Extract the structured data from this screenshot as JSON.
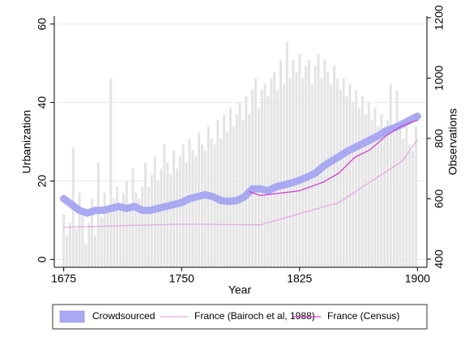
{
  "chart_data": {
    "type": "line",
    "xlabel": "Year",
    "ylabel": "Urbanization",
    "y2label": "Observations",
    "xlim": [
      1669,
      1906
    ],
    "ylim": [
      -2,
      62
    ],
    "y2lim": [
      373,
      1205
    ],
    "xticks": [
      1675,
      1750,
      1825,
      1900
    ],
    "yticks": [
      0,
      20,
      40,
      60
    ],
    "y2ticks": [
      400,
      600,
      800,
      1000,
      1200
    ],
    "grid": true,
    "legend": "bottom",
    "series": [
      {
        "type": "bar",
        "axis": "y2",
        "color": "#e4e4e4",
        "x": [
          1675,
          1677,
          1679,
          1681,
          1683,
          1685,
          1687,
          1689,
          1691,
          1693,
          1695,
          1697,
          1699,
          1701,
          1703,
          1705,
          1707,
          1709,
          1711,
          1713,
          1715,
          1717,
          1719,
          1721,
          1723,
          1725,
          1727,
          1729,
          1731,
          1733,
          1735,
          1737,
          1739,
          1741,
          1743,
          1745,
          1747,
          1749,
          1751,
          1753,
          1755,
          1757,
          1759,
          1761,
          1763,
          1765,
          1767,
          1769,
          1771,
          1773,
          1775,
          1777,
          1779,
          1781,
          1783,
          1785,
          1787,
          1789,
          1791,
          1793,
          1795,
          1797,
          1799,
          1801,
          1803,
          1805,
          1807,
          1809,
          1811,
          1813,
          1815,
          1817,
          1819,
          1821,
          1823,
          1825,
          1827,
          1829,
          1831,
          1833,
          1835,
          1837,
          1839,
          1841,
          1843,
          1845,
          1847,
          1849,
          1851,
          1853,
          1855,
          1857,
          1859,
          1861,
          1863,
          1865,
          1867,
          1869,
          1871,
          1873,
          1875,
          1877,
          1879,
          1881,
          1883,
          1885,
          1887,
          1889,
          1891,
          1893,
          1895,
          1897,
          1899
        ],
        "values": [
          550,
          480,
          520,
          770,
          500,
          620,
          560,
          450,
          520,
          600,
          480,
          720,
          540,
          620,
          560,
          1000,
          600,
          640,
          560,
          620,
          660,
          580,
          700,
          620,
          600,
          640,
          720,
          640,
          680,
          740,
          660,
          700,
          780,
          720,
          680,
          760,
          700,
          740,
          780,
          720,
          800,
          760,
          740,
          820,
          780,
          760,
          840,
          800,
          780,
          860,
          800,
          880,
          820,
          900,
          840,
          880,
          920,
          860,
          940,
          880,
          960,
          1000,
          900,
          960,
          980,
          940,
          1000,
          1020,
          960,
          1060,
          980,
          1120,
          1000,
          1060,
          1020,
          1080,
          1000,
          1040,
          1060,
          980,
          1040,
          1080,
          1000,
          1060,
          1020,
          980,
          1040,
          1000,
          960,
          1000,
          940,
          980,
          920,
          960,
          900,
          940,
          880,
          920,
          860,
          900,
          840,
          880,
          820,
          860,
          980,
          820,
          960,
          860,
          800,
          840,
          780,
          760,
          840
        ]
      },
      {
        "type": "line",
        "name": "Crowdsourced",
        "color": "#a9a9f2",
        "width": 9,
        "x": [
          1675,
          1680,
          1685,
          1690,
          1695,
          1700,
          1705,
          1710,
          1715,
          1720,
          1725,
          1730,
          1735,
          1740,
          1745,
          1750,
          1755,
          1760,
          1765,
          1770,
          1775,
          1780,
          1785,
          1790,
          1795,
          1800,
          1805,
          1810,
          1815,
          1820,
          1825,
          1830,
          1835,
          1840,
          1845,
          1850,
          1855,
          1860,
          1865,
          1870,
          1875,
          1880,
          1885,
          1890,
          1895,
          1900
        ],
        "values": [
          15.5,
          14,
          12.5,
          11.8,
          12.5,
          12.5,
          13,
          13.5,
          13,
          13.5,
          12.5,
          12.5,
          13,
          13.5,
          14,
          14.5,
          15.5,
          16,
          16.5,
          16,
          15,
          14.8,
          15,
          16,
          18,
          18,
          17.5,
          18.5,
          19,
          19.5,
          20.2,
          21,
          22,
          23.7,
          25,
          26.2,
          27.5,
          28.5,
          29.5,
          30.5,
          31.5,
          32.8,
          33.5,
          34.4,
          35.5,
          36.5
        ]
      },
      {
        "type": "line",
        "name": "France (Bairoch et al, 1988)",
        "color": "#e8a8e8",
        "width": 1.3,
        "x": [
          1675,
          1750,
          1800,
          1850,
          1890,
          1900
        ],
        "values": [
          8.2,
          9,
          8.8,
          14.5,
          25,
          30.5
        ]
      },
      {
        "type": "line",
        "name": "France (Census)",
        "color": "#d040d0",
        "width": 1.3,
        "x": [
          1793,
          1800,
          1825,
          1840,
          1850,
          1860,
          1870,
          1880,
          1890,
          1900
        ],
        "values": [
          17.3,
          16.3,
          17.5,
          19.7,
          22,
          26,
          28,
          31.5,
          34,
          35.5
        ]
      }
    ]
  }
}
